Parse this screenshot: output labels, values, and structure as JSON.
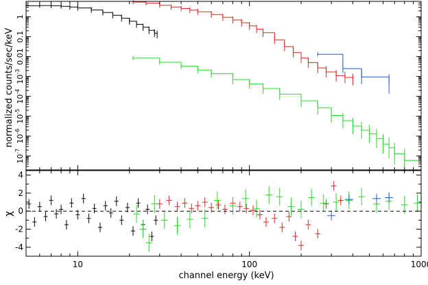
{
  "chart_data": [
    {
      "type": "line",
      "panel": "spectrum",
      "xlabel": "channel energy (keV)",
      "ylabel": "normalized counts/sec/keV",
      "x_scale": "log",
      "y_scale": "log",
      "xlim": [
        5,
        1000
      ],
      "ylim": [
        2e-08,
        6
      ],
      "y_ticks": [
        {
          "v": 1e-07,
          "label": "10^-7"
        },
        {
          "v": 1e-06,
          "label": "10^-6"
        },
        {
          "v": 1e-05,
          "label": "10^-5"
        },
        {
          "v": 0.0001,
          "label": "10^-4"
        },
        {
          "v": 0.001,
          "label": "10^-3"
        },
        {
          "v": 0.01,
          "label": "0.01"
        },
        {
          "v": 0.1,
          "label": "0.1"
        },
        {
          "v": 1,
          "label": "1"
        }
      ],
      "series": [
        {
          "color": "#000000",
          "x": [
            5.0,
            6.0,
            7.0,
            8.0,
            9.0,
            10.0,
            12.0,
            14.0,
            16.0,
            18.0,
            20.0,
            22.0,
            24.0,
            26.0,
            28.0,
            29.0
          ],
          "y": [
            3.6,
            3.7,
            3.6,
            3.4,
            3.1,
            2.8,
            2.2,
            1.65,
            1.2,
            0.85,
            0.6,
            0.42,
            0.3,
            0.21,
            0.15,
            0.13
          ]
        },
        {
          "color": "#dd2222",
          "x": [
            21,
            25,
            30,
            35,
            40,
            45,
            50,
            60,
            70,
            80,
            90,
            100,
            110,
            120,
            140,
            160,
            180,
            200,
            220,
            250,
            280,
            320,
            360,
            400
          ],
          "y": [
            5.5,
            4.8,
            3.8,
            3.1,
            2.6,
            2.15,
            1.8,
            1.3,
            0.95,
            0.7,
            0.5,
            0.35,
            0.24,
            0.16,
            0.07,
            0.032,
            0.016,
            0.0085,
            0.005,
            0.0027,
            0.0017,
            0.0011,
            0.0009,
            0.0007
          ]
        },
        {
          "color": "#22dd22",
          "x": [
            21,
            30,
            40,
            50,
            60,
            80,
            100,
            120,
            150,
            200,
            250,
            300,
            350,
            400,
            450,
            500,
            550,
            600,
            650,
            700,
            800,
            1000
          ],
          "y": [
            0.0085,
            0.0052,
            0.0033,
            0.0021,
            0.0014,
            0.0007,
            0.00042,
            0.00025,
            0.00013,
            6e-05,
            2.7e-05,
            1.1e-05,
            6e-06,
            3.2e-06,
            2e-06,
            1.3e-06,
            7.5e-07,
            4e-07,
            2.6e-07,
            1.3e-07,
            6e-08,
            3e-08
          ]
        },
        {
          "color": "#2255dd",
          "x": [
            250,
            350,
            450,
            650
          ],
          "y": [
            0.013,
            0.0025,
            0.00095,
            0.00042
          ]
        }
      ]
    },
    {
      "type": "scatter",
      "panel": "residuals",
      "xlabel": "channel energy (keV)",
      "ylabel": "χ",
      "x_scale": "log",
      "xlim": [
        5,
        1000
      ],
      "ylim": [
        -5,
        4.5
      ],
      "y_ticks": [
        -4,
        -2,
        0,
        2,
        4
      ],
      "x_ticks": [
        {
          "v": 10,
          "label": "10"
        },
        {
          "v": 100,
          "label": "100"
        },
        {
          "v": 1000,
          "label": "1000"
        }
      ],
      "zero_line": true,
      "series": [
        {
          "color": "#000000",
          "x": [
            5.2,
            5.6,
            6.0,
            6.5,
            7.0,
            7.5,
            8.0,
            8.6,
            9.2,
            10.0,
            10.8,
            11.6,
            12.5,
            13.5,
            14.5,
            15.6,
            16.8,
            18.0,
            19.5,
            21.0,
            22.5,
            24.0,
            25.5,
            27.0,
            28.5
          ],
          "y": [
            0.8,
            -1.2,
            0.5,
            -0.6,
            1.2,
            -0.3,
            0.2,
            -1.5,
            0.9,
            -0.4,
            1.4,
            -0.8,
            0.3,
            -1.8,
            0.6,
            -0.2,
            1.1,
            -1.0,
            0.4,
            -2.2,
            0.9,
            -1.5,
            0.2,
            -2.8,
            -1.0
          ]
        },
        {
          "color": "#dd2222",
          "x": [
            30,
            34,
            38,
            42,
            46,
            50,
            55,
            60,
            66,
            72,
            80,
            88,
            96,
            105,
            115,
            125,
            140,
            155,
            170,
            185,
            200,
            220,
            250,
            280,
            310,
            340
          ],
          "y": [
            0.8,
            1.2,
            0.5,
            0.9,
            0.3,
            0.6,
            1.0,
            0.4,
            0.7,
            0.2,
            0.9,
            0.5,
            0.3,
            0.1,
            -0.4,
            -1.2,
            -0.8,
            -1.8,
            -0.6,
            -2.8,
            -3.8,
            -1.5,
            -2.5,
            0.8,
            2.8,
            1.2
          ]
        },
        {
          "color": "#22dd22",
          "x": [
            22,
            24,
            26,
            28,
            32,
            38,
            45,
            55,
            65,
            80,
            95,
            110,
            130,
            150,
            175,
            200,
            230,
            270,
            320,
            380,
            450,
            550,
            650,
            800,
            950
          ],
          "y": [
            -0.3,
            -2.0,
            -3.5,
            0.8,
            -1.0,
            -1.6,
            -0.9,
            -0.8,
            1.2,
            0.6,
            1.4,
            0.3,
            1.8,
            1.6,
            0.5,
            0.2,
            1.5,
            0.9,
            1.0,
            1.2,
            1.6,
            0.8,
            1.1,
            0.7,
            0.9
          ]
        },
        {
          "color": "#2255dd",
          "x": [
            300,
            380,
            550,
            650
          ],
          "y": [
            -0.5,
            1.3,
            1.4,
            1.5
          ]
        }
      ]
    }
  ]
}
